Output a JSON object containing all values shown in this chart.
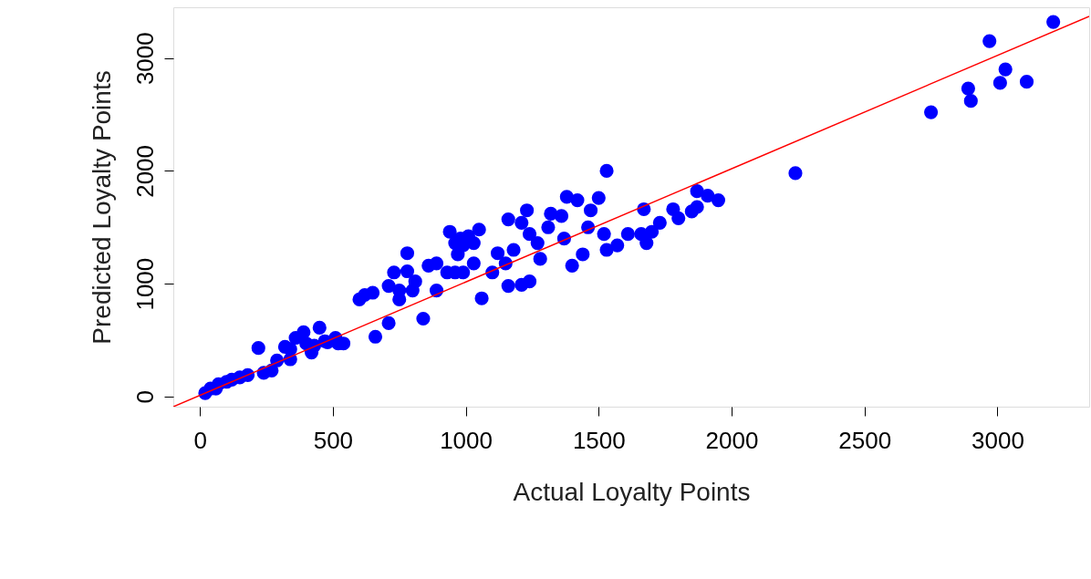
{
  "chart_data": {
    "type": "scatter",
    "xlabel": "Actual Loyalty Points",
    "ylabel": "Predicted Loyalty Points",
    "xlim": [
      -100,
      3345
    ],
    "ylim": [
      -90,
      3450
    ],
    "xticks": [
      0,
      500,
      1000,
      1500,
      2000,
      2500,
      3000
    ],
    "yticks": [
      0,
      1000,
      2000,
      3000
    ],
    "grid": false,
    "series": [
      {
        "color": "#0000ff",
        "marker": "circle",
        "x": [
          3210,
          2970,
          3030,
          3010,
          3110,
          2890,
          2900,
          2750,
          2240,
          1530,
          1950,
          1870,
          1910,
          1870,
          1850,
          1800,
          1780,
          1730,
          1700,
          1660,
          1670,
          1680,
          1610,
          1570,
          1520,
          1530,
          1460,
          1470,
          1500,
          1440,
          1400,
          1380,
          1420,
          1360,
          1370,
          1320,
          1310,
          1280,
          1270,
          1240,
          1230,
          1210,
          1160,
          1180,
          1150,
          1120,
          1100,
          1060,
          1160,
          1210,
          1240,
          1050,
          1010,
          990,
          970,
          960,
          930,
          990,
          940,
          980,
          1030,
          890,
          860,
          890,
          840,
          710,
          750,
          730,
          780,
          780,
          800,
          810,
          750,
          650,
          620,
          600,
          710,
          660,
          540,
          520,
          510,
          450,
          480,
          430,
          400,
          390,
          360,
          340,
          320,
          290,
          270,
          220,
          240,
          180,
          150,
          120,
          100,
          70,
          40,
          20,
          60,
          420,
          340,
          470,
          1030,
          960
        ],
        "values": [
          3320,
          3150,
          2900,
          2780,
          2790,
          2730,
          2620,
          2520,
          1980,
          2000,
          1740,
          1820,
          1780,
          1680,
          1640,
          1580,
          1660,
          1540,
          1460,
          1440,
          1660,
          1360,
          1440,
          1340,
          1440,
          1300,
          1500,
          1650,
          1760,
          1260,
          1160,
          1770,
          1740,
          1600,
          1400,
          1620,
          1500,
          1220,
          1360,
          1440,
          1650,
          1540,
          1570,
          1300,
          1180,
          1270,
          1100,
          870,
          980,
          990,
          1020,
          1480,
          1420,
          1340,
          1260,
          1100,
          1100,
          1100,
          1460,
          1400,
          1180,
          1180,
          1160,
          940,
          690,
          980,
          860,
          1100,
          1110,
          1270,
          940,
          1020,
          940,
          920,
          900,
          860,
          650,
          530,
          470,
          470,
          520,
          610,
          480,
          450,
          470,
          570,
          520,
          420,
          440,
          320,
          230,
          430,
          210,
          190,
          170,
          150,
          130,
          110,
          70,
          30,
          70,
          390,
          330,
          490,
          1360,
          1360
        ]
      },
      {
        "type": "line",
        "color": "#ff0000",
        "marker": "none",
        "line_style": "solid",
        "x": [
          -100,
          3345
        ],
        "values": [
          -90,
          3370
        ]
      }
    ]
  }
}
